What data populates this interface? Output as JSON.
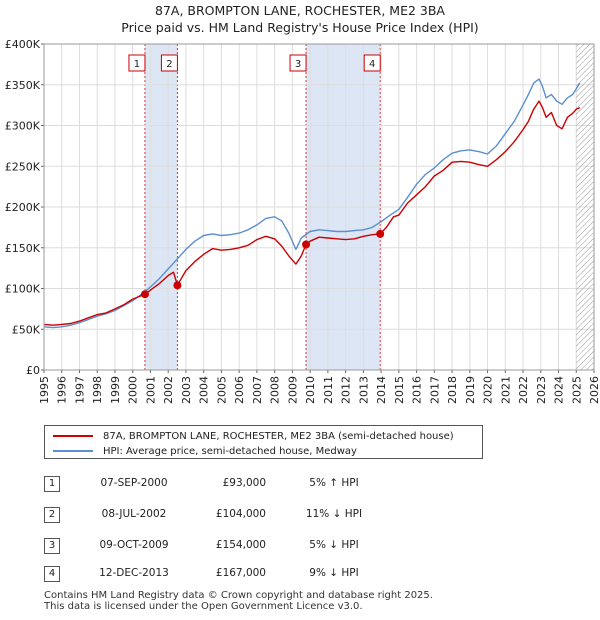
{
  "title_line1": "87A, BROMPTON LANE, ROCHESTER, ME2 3BA",
  "title_line2": "Price paid vs. HM Land Registry's House Price Index (HPI)",
  "chart_data": {
    "type": "line",
    "title": "87A, BROMPTON LANE, ROCHESTER, ME2 3BA — Price paid vs. HM Land Registry's House Price Index (HPI)",
    "xlabel": "",
    "ylabel": "",
    "xlim": [
      1995,
      2026
    ],
    "ylim": [
      0,
      400000
    ],
    "y_ticks": [
      0,
      50000,
      100000,
      150000,
      200000,
      250000,
      300000,
      350000,
      400000
    ],
    "y_tick_labels": [
      "£0",
      "£50K",
      "£100K",
      "£150K",
      "£200K",
      "£250K",
      "£300K",
      "£350K",
      "£400K"
    ],
    "x_ticks": [
      1995,
      1996,
      1997,
      1998,
      1999,
      2000,
      2001,
      2002,
      2003,
      2004,
      2005,
      2006,
      2007,
      2008,
      2009,
      2010,
      2011,
      2012,
      2013,
      2014,
      2015,
      2016,
      2017,
      2018,
      2019,
      2020,
      2021,
      2022,
      2023,
      2024,
      2025,
      2026
    ],
    "x_tick_labels": [
      "1995",
      "1996",
      "1997",
      "1998",
      "1999",
      "2000",
      "2001",
      "2002",
      "2003",
      "2004",
      "2005",
      "2006",
      "2007",
      "2008",
      "2009",
      "2010",
      "2011",
      "2012",
      "2013",
      "2014",
      "2015",
      "2016",
      "2017",
      "2018",
      "2019",
      "2020",
      "2021",
      "2022",
      "2023",
      "2024",
      "2025",
      "2026"
    ],
    "grid": true,
    "shaded_spans": [
      [
        2000.69,
        2002.52
      ],
      [
        2009.77,
        2013.95
      ]
    ],
    "future_hatch_from": 2025.0,
    "series": [
      {
        "name": "87A, BROMPTON LANE, ROCHESTER, ME2 3BA (semi-detached house)",
        "color": "#cc0000",
        "x": [
          1995.0,
          1995.5,
          1996.0,
          1996.5,
          1997.0,
          1997.5,
          1998.0,
          1998.5,
          1999.0,
          1999.5,
          2000.0,
          2000.69,
          2001.0,
          2001.5,
          2002.0,
          2002.3,
          2002.52,
          2003.0,
          2003.5,
          2004.0,
          2004.5,
          2005.0,
          2005.5,
          2006.0,
          2006.5,
          2007.0,
          2007.5,
          2008.0,
          2008.4,
          2008.8,
          2009.2,
          2009.5,
          2009.77,
          2010.0,
          2010.5,
          2011.0,
          2011.5,
          2012.0,
          2012.5,
          2013.0,
          2013.5,
          2013.95,
          2014.3,
          2014.7,
          2015.0,
          2015.5,
          2016.0,
          2016.5,
          2017.0,
          2017.5,
          2018.0,
          2018.5,
          2019.0,
          2019.5,
          2020.0,
          2020.5,
          2021.0,
          2021.5,
          2022.0,
          2022.3,
          2022.6,
          2022.9,
          2023.1,
          2023.3,
          2023.6,
          2023.9,
          2024.2,
          2024.5,
          2024.8,
          2025.0,
          2025.2
        ],
        "values": [
          56000,
          55000,
          56000,
          57000,
          60000,
          64000,
          68000,
          70000,
          75000,
          80000,
          87000,
          93000,
          98000,
          106000,
          116000,
          120000,
          104000,
          122000,
          133000,
          142000,
          149000,
          147000,
          148000,
          150000,
          153000,
          160000,
          164000,
          161000,
          152000,
          140000,
          130000,
          140000,
          154000,
          158000,
          163000,
          162000,
          161000,
          160000,
          161000,
          164000,
          166000,
          167000,
          175000,
          188000,
          190000,
          205000,
          215000,
          225000,
          238000,
          245000,
          255000,
          256000,
          255000,
          252000,
          250000,
          258000,
          268000,
          280000,
          295000,
          305000,
          320000,
          330000,
          322000,
          310000,
          316000,
          300000,
          296000,
          310000,
          315000,
          320000,
          322000
        ]
      },
      {
        "name": "HPI: Average price, semi-detached house, Medway",
        "color": "#5b8fd0",
        "x": [
          1995.0,
          1995.5,
          1996.0,
          1996.5,
          1997.0,
          1997.5,
          1998.0,
          1998.5,
          1999.0,
          1999.5,
          2000.0,
          2000.5,
          2001.0,
          2001.5,
          2002.0,
          2002.5,
          2003.0,
          2003.5,
          2004.0,
          2004.5,
          2005.0,
          2005.5,
          2006.0,
          2006.5,
          2007.0,
          2007.5,
          2008.0,
          2008.4,
          2008.8,
          2009.2,
          2009.5,
          2010.0,
          2010.5,
          2011.0,
          2011.5,
          2012.0,
          2012.5,
          2013.0,
          2013.5,
          2014.0,
          2014.5,
          2015.0,
          2015.5,
          2016.0,
          2016.5,
          2017.0,
          2017.5,
          2018.0,
          2018.5,
          2019.0,
          2019.5,
          2020.0,
          2020.5,
          2021.0,
          2021.5,
          2022.0,
          2022.3,
          2022.6,
          2022.9,
          2023.1,
          2023.3,
          2023.6,
          2023.9,
          2024.2,
          2024.5,
          2024.8,
          2025.0,
          2025.2
        ],
        "values": [
          53000,
          52000,
          53000,
          55000,
          58000,
          62000,
          66000,
          69000,
          73000,
          79000,
          85000,
          93000,
          102000,
          112000,
          124000,
          136000,
          148000,
          158000,
          165000,
          167000,
          165000,
          166000,
          168000,
          172000,
          178000,
          186000,
          188000,
          183000,
          168000,
          148000,
          162000,
          170000,
          172000,
          171000,
          170000,
          170000,
          171000,
          172000,
          175000,
          182000,
          190000,
          197000,
          212000,
          228000,
          240000,
          248000,
          258000,
          266000,
          269000,
          270000,
          268000,
          265000,
          275000,
          290000,
          305000,
          325000,
          338000,
          352000,
          357000,
          348000,
          334000,
          338000,
          330000,
          326000,
          334000,
          338000,
          345000,
          352000
        ]
      }
    ],
    "sales": [
      {
        "num": "1",
        "x": 2000.69,
        "value": 93000
      },
      {
        "num": "2",
        "x": 2002.52,
        "value": 104000
      },
      {
        "num": "3",
        "x": 2009.77,
        "value": 154000
      },
      {
        "num": "4",
        "x": 2013.95,
        "value": 167000
      }
    ]
  },
  "legend": {
    "property_label": "87A, BROMPTON LANE, ROCHESTER, ME2 3BA (semi-detached house)",
    "hpi_label": "HPI: Average price, semi-detached house, Medway",
    "property_color": "#cc0000",
    "hpi_color": "#5b8fd0"
  },
  "transactions": [
    {
      "num": "1",
      "date": "07-SEP-2000",
      "price": "£93,000",
      "hpi": "5% ↑ HPI"
    },
    {
      "num": "2",
      "date": "08-JUL-2002",
      "price": "£104,000",
      "hpi": "11% ↓ HPI"
    },
    {
      "num": "3",
      "date": "09-OCT-2009",
      "price": "£154,000",
      "hpi": "5% ↓ HPI"
    },
    {
      "num": "4",
      "date": "12-DEC-2013",
      "price": "£167,000",
      "hpi": "9% ↓ HPI"
    }
  ],
  "footer": {
    "line1": "Contains HM Land Registry data © Crown copyright and database right 2025.",
    "line2": "This data is licensed under the Open Government Licence v3.0."
  }
}
